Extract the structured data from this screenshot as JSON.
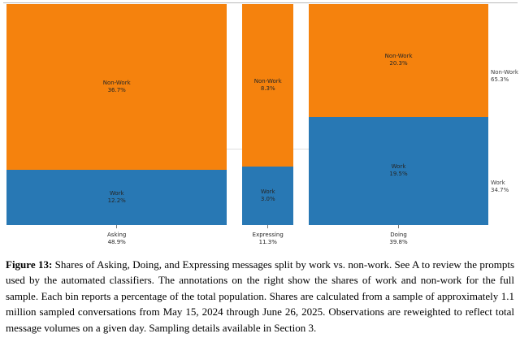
{
  "figure": {
    "caption": {
      "label": "Figure 13:",
      "text": "Shares of Asking, Doing, and Expressing messages split by work vs. non-work. See A to review the prompts used by the automated classifiers. The annotations on the right show the shares of work and non-work for the full sample. Each bin reports a percentage of the total population. Shares are calculated from a sample of approximately 1.1 million sampled conversations from May 15, 2024 through June 26, 2025. Observations are reweighted to reflect total message volumes on a given day. Sampling details available in Section 3."
    }
  },
  "chart_data": {
    "type": "mosaic",
    "description": "Column widths proportional to category share of total; each column stacked into Non-Work (top, orange) and Work (bottom, blue); all values are percent of total population.",
    "categories": [
      "Asking",
      "Expressing",
      "Doing"
    ],
    "column_shares": [
      48.9,
      11.3,
      39.8
    ],
    "column_share_labels": [
      "48.9%",
      "11.3%",
      "39.8%"
    ],
    "series": [
      {
        "name": "Work",
        "values": [
          12.2,
          3.0,
          19.5
        ],
        "value_labels": [
          "12.2%",
          "3.0%",
          "19.5%"
        ]
      },
      {
        "name": "Non-Work",
        "values": [
          36.7,
          8.3,
          20.3
        ],
        "value_labels": [
          "36.7%",
          "8.3%",
          "20.3%"
        ]
      }
    ],
    "full_sample_annotations": [
      {
        "name": "Non-Work",
        "value": 65.3,
        "label": "65.3%"
      },
      {
        "name": "Work",
        "value": 34.7,
        "label": "34.7%"
      }
    ],
    "colors": {
      "work": "#2878b4",
      "nonwork": "#f5820d",
      "frame": "#b9b9b9",
      "gap_line": "#dedede",
      "label_text": "#262626"
    },
    "legend_position": "right-annotations",
    "axes": "no visible axis scales; percentages embedded as labels"
  }
}
